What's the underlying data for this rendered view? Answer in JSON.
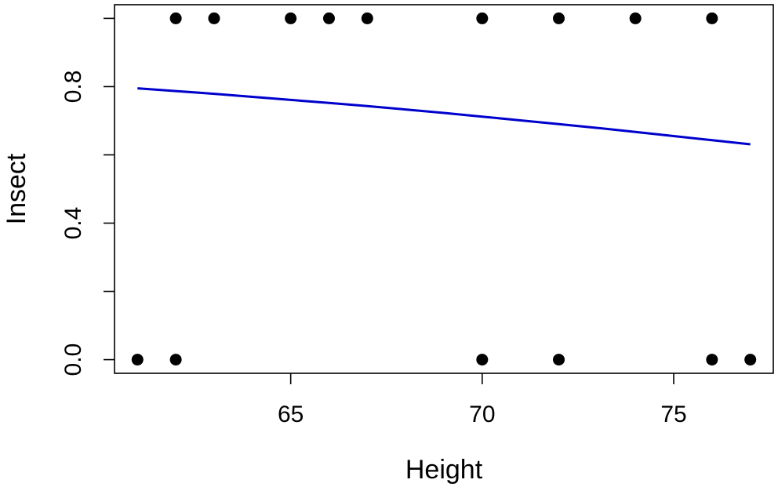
{
  "chart_data": {
    "type": "scatter",
    "title": "",
    "xlabel": "Height",
    "ylabel": "Insect",
    "xlim": [
      60.4,
      77.6
    ],
    "ylim": [
      -0.04,
      1.04
    ],
    "x_ticks": [
      65,
      70,
      75
    ],
    "x_tick_labels": [
      "65",
      "70",
      "75"
    ],
    "y_ticks": [
      0.0,
      0.2,
      0.4,
      0.6,
      0.8,
      1.0
    ],
    "y_tick_labels": [
      "0.0",
      "",
      "0.4",
      "",
      "0.8",
      ""
    ],
    "grid": false,
    "legend": "none",
    "series": [
      {
        "kind": "points",
        "color": "#000000",
        "x": [
          61,
          62,
          62,
          63,
          65,
          66,
          67,
          70,
          70,
          72,
          72,
          74,
          76,
          76,
          77
        ],
        "y": [
          0,
          0,
          1,
          1,
          1,
          1,
          1,
          0,
          1,
          0,
          1,
          1,
          0,
          1,
          0
        ]
      },
      {
        "kind": "line",
        "color": "#0000CD",
        "x": [
          61,
          62,
          63,
          64,
          65,
          66,
          67,
          68,
          69,
          70,
          71,
          72,
          73,
          74,
          75,
          76,
          77
        ],
        "y": [
          0.795,
          0.787,
          0.779,
          0.77,
          0.761,
          0.752,
          0.743,
          0.733,
          0.723,
          0.712,
          0.701,
          0.69,
          0.679,
          0.667,
          0.655,
          0.643,
          0.631
        ]
      }
    ]
  }
}
